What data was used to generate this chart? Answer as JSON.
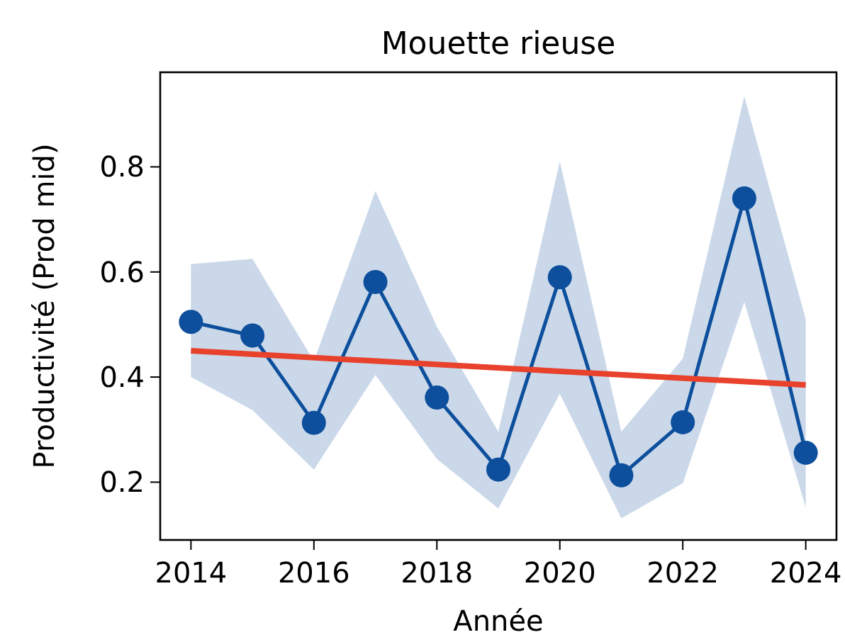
{
  "chart_data": {
    "type": "line",
    "title": "Mouette rieuse",
    "xlabel": "Année",
    "ylabel": "Productivité (Prod mid)",
    "x": [
      2014,
      2015,
      2016,
      2017,
      2018,
      2019,
      2020,
      2021,
      2022,
      2023,
      2024
    ],
    "series": [
      {
        "color": "#0d4f9c",
        "marker": "circle",
        "values": [
          0.505,
          0.479,
          0.313,
          0.581,
          0.361,
          0.224,
          0.59,
          0.213,
          0.314,
          0.74,
          0.256
        ],
        "lower": [
          0.4,
          0.337,
          0.224,
          0.404,
          0.244,
          0.15,
          0.368,
          0.131,
          0.198,
          0.543,
          0.152
        ],
        "upper": [
          0.615,
          0.625,
          0.43,
          0.754,
          0.496,
          0.296,
          0.81,
          0.296,
          0.435,
          0.934,
          0.51
        ]
      },
      {
        "type": "line",
        "color": "#e8412c",
        "marker": "none",
        "x": [
          2014,
          2024
        ],
        "values": [
          0.45,
          0.385
        ]
      }
    ],
    "xlim": [
      2013.5,
      2024.5
    ],
    "ylim": [
      0.09,
      0.98
    ],
    "xticks": [
      2014,
      2016,
      2018,
      2020,
      2022,
      2024
    ],
    "yticks": [
      0.2,
      0.4,
      0.6,
      0.8
    ]
  }
}
